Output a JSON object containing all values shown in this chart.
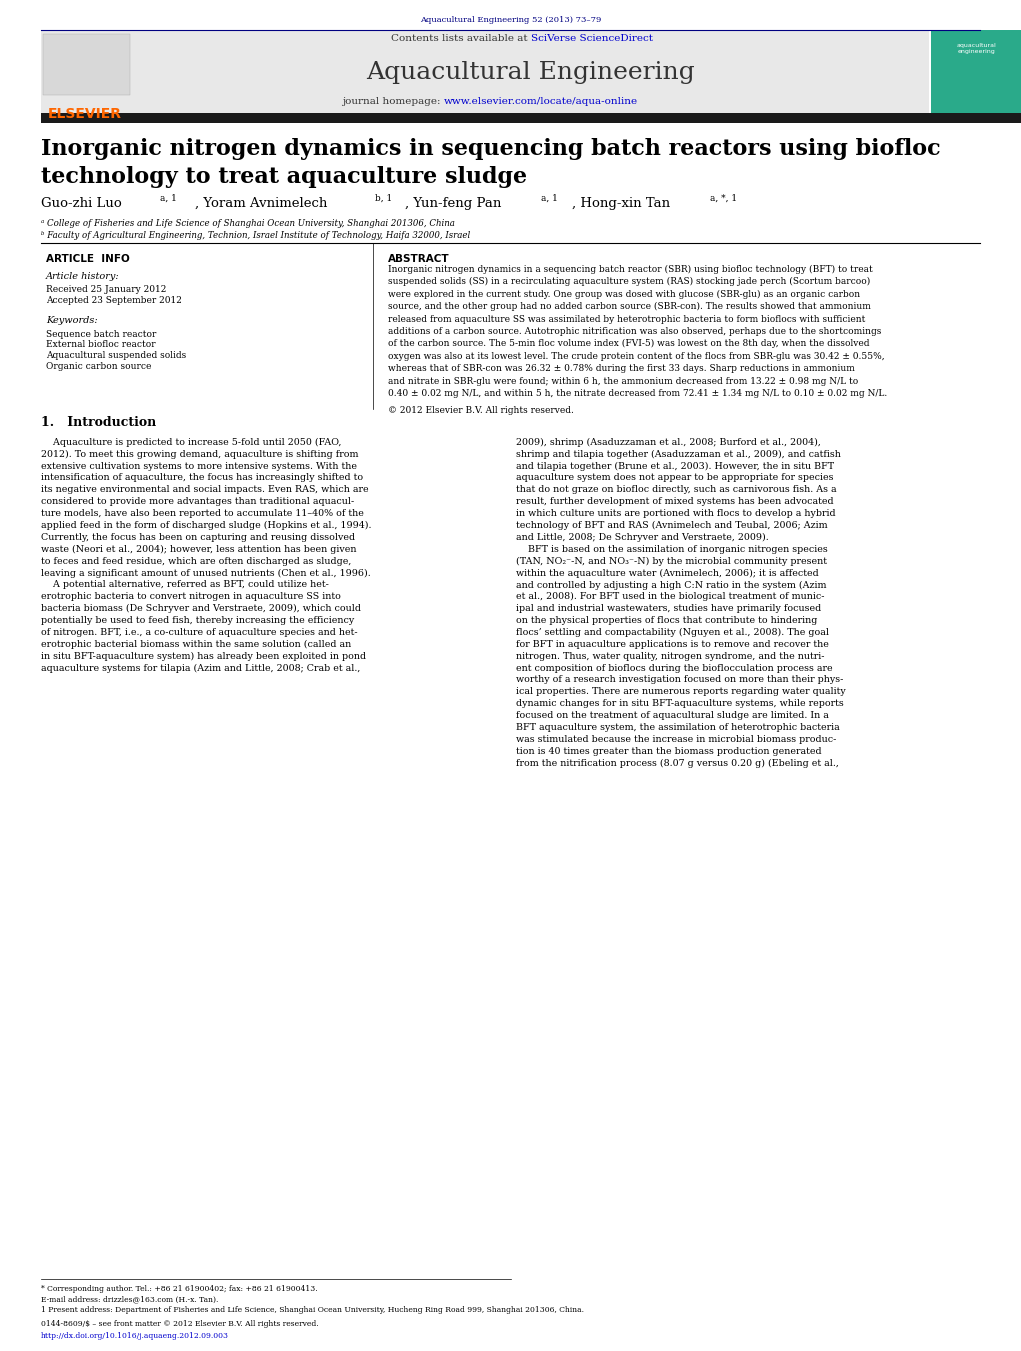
{
  "page_width": 10.21,
  "page_height": 13.51,
  "background_color": "#ffffff",
  "header_journal_ref": "Aquacultural Engineering 52 (2013) 73–79",
  "header_ref_color": "#000080",
  "journal_name": "Aquacultural Engineering",
  "contents_text": "Contents lists available at ",
  "sciverse_text": "SciVerse ScienceDirect",
  "homepage_text": "journal homepage: ",
  "homepage_url": "www.elsevier.com/locate/aqua-online",
  "elsevier_color": "#FF6600",
  "link_color": "#0000CD",
  "article_title_line1": "Inorganic nitrogen dynamics in sequencing batch reactors using biofloc",
  "article_title_line2": "technology to treat aquaculture sludge",
  "affiliation_a": "ᵃ College of Fisheries and Life Science of Shanghai Ocean University, Shanghai 201306, China",
  "affiliation_b": "ᵇ Faculty of Agricultural Engineering, Technion, Israel Institute of Technology, Haifa 32000, Israel",
  "article_info_label": "ARTICLE  INFO",
  "abstract_label": "ABSTRACT",
  "article_history_label": "Article history:",
  "received_text": "Received 25 January 2012",
  "accepted_text": "Accepted 23 September 2012",
  "keywords_label": "Keywords:",
  "keyword1": "Sequence batch reactor",
  "keyword2": "External biofloc reactor",
  "keyword3": "Aquacultural suspended solids",
  "keyword4": "Organic carbon source",
  "copyright_text": "© 2012 Elsevier B.V. All rights reserved.",
  "intro_section": "1.   Introduction",
  "footer_text1": "* Corresponding author. Tel.: +86 21 61900402; fax: +86 21 61900413.",
  "footer_text2": "E-mail address: drizzles@163.com (H.-x. Tan).",
  "footer_text3": "1 Present address: Department of Fisheries and Life Science, Shanghai Ocean University, Hucheng Ring Road 999, Shanghai 201306, China.",
  "footer_text4": "0144-8609/$ – see front matter © 2012 Elsevier B.V. All rights reserved.",
  "footer_doi": "http://dx.doi.org/10.1016/j.aquaeng.2012.09.003",
  "header_bar_color": "#000080",
  "header_bg_color": "#E8E8E8",
  "dark_bar_color": "#1a1a1a",
  "abstract_lines": [
    "Inorganic nitrogen dynamics in a sequencing batch reactor (SBR) using biofloc technology (BFT) to treat",
    "suspended solids (SS) in a recirculating aquaculture system (RAS) stocking jade perch (Scortum barcoo)",
    "were explored in the current study. One group was dosed with glucose (SBR-glu) as an organic carbon",
    "source, and the other group had no added carbon source (SBR-con). The results showed that ammonium",
    "released from aquaculture SS was assimilated by heterotrophic bacteria to form bioflocs with sufficient",
    "additions of a carbon source. Autotrophic nitrification was also observed, perhaps due to the shortcomings",
    "of the carbon source. The 5-min floc volume index (FVI-5) was lowest on the 8th day, when the dissolved",
    "oxygen was also at its lowest level. The crude protein content of the flocs from SBR-glu was 30.42 ± 0.55%,",
    "whereas that of SBR-con was 26.32 ± 0.78% during the first 33 days. Sharp reductions in ammonium",
    "and nitrate in SBR-glu were found; within 6 h, the ammonium decreased from 13.22 ± 0.98 mg N/L to",
    "0.40 ± 0.02 mg N/L, and within 5 h, the nitrate decreased from 72.41 ± 1.34 mg N/L to 0.10 ± 0.02 mg N/L."
  ],
  "col1_lines": [
    "    Aquaculture is predicted to increase 5-fold until 2050 (FAO,",
    "2012). To meet this growing demand, aquaculture is shifting from",
    "extensive cultivation systems to more intensive systems. With the",
    "intensification of aquaculture, the focus has increasingly shifted to",
    "its negative environmental and social impacts. Even RAS, which are",
    "considered to provide more advantages than traditional aquacul-",
    "ture models, have also been reported to accumulate 11–40% of the",
    "applied feed in the form of discharged sludge (Hopkins et al., 1994).",
    "Currently, the focus has been on capturing and reusing dissolved",
    "waste (Neori et al., 2004); however, less attention has been given",
    "to feces and feed residue, which are often discharged as sludge,",
    "leaving a significant amount of unused nutrients (Chen et al., 1996).",
    "    A potential alternative, referred as BFT, could utilize het-",
    "erotrophic bacteria to convert nitrogen in aquaculture SS into",
    "bacteria biomass (De Schryver and Verstraete, 2009), which could",
    "potentially be used to feed fish, thereby increasing the efficiency",
    "of nitrogen. BFT, i.e., a co-culture of aquaculture species and het-",
    "erotrophic bacterial biomass within the same solution (called an",
    "in situ BFT-aquaculture system) has already been exploited in pond",
    "aquaculture systems for tilapia (Azim and Little, 2008; Crab et al.,"
  ],
  "col2_lines": [
    "2009), shrimp (Asaduzzaman et al., 2008; Burford et al., 2004),",
    "shrimp and tilapia together (Asaduzzaman et al., 2009), and catfish",
    "and tilapia together (Brune et al., 2003). However, the in situ BFT",
    "aquaculture system does not appear to be appropriate for species",
    "that do not graze on biofloc directly, such as carnivorous fish. As a",
    "result, further development of mixed systems has been advocated",
    "in which culture units are portioned with flocs to develop a hybrid",
    "technology of BFT and RAS (Avnimelech and Teubal, 2006; Azim",
    "and Little, 2008; De Schryver and Verstraete, 2009).",
    "    BFT is based on the assimilation of inorganic nitrogen species",
    "(TAN, NO₂⁻-N, and NO₃⁻-N) by the microbial community present",
    "within the aquaculture water (Avnimelech, 2006); it is affected",
    "and controlled by adjusting a high C:N ratio in the system (Azim",
    "et al., 2008). For BFT used in the biological treatment of munic-",
    "ipal and industrial wastewaters, studies have primarily focused",
    "on the physical properties of flocs that contribute to hindering",
    "flocs’ settling and compactability (Nguyen et al., 2008). The goal",
    "for BFT in aquaculture applications is to remove and recover the",
    "nitrogen. Thus, water quality, nitrogen syndrome, and the nutri-",
    "ent composition of bioflocs during the bioflocculation process are",
    "worthy of a research investigation focused on more than their phys-",
    "ical properties. There are numerous reports regarding water quality",
    "dynamic changes for in situ BFT-aquaculture systems, while reports",
    "focused on the treatment of aquacultural sludge are limited. In a",
    "BFT aquaculture system, the assimilation of heterotrophic bacteria",
    "was stimulated because the increase in microbial biomass produc-",
    "tion is 40 times greater than the biomass production generated",
    "from the nitrification process (8.07 g versus 0.20 g) (Ebeling et al.,"
  ]
}
